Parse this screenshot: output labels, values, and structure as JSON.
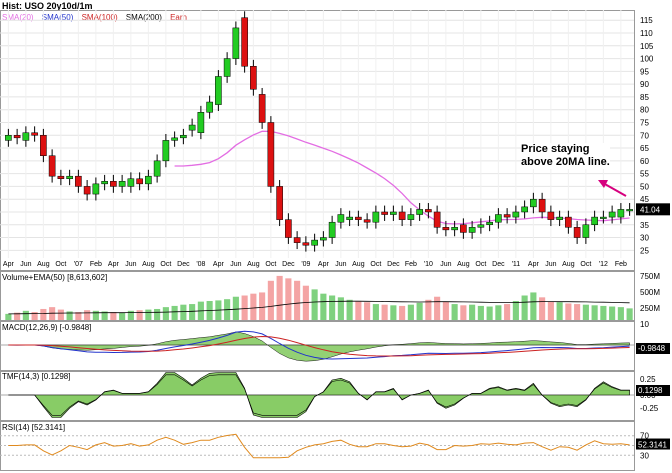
{
  "header": {
    "title": "Hist: USO 20y10d/1m"
  },
  "legend": [
    {
      "label": "SMA(20)",
      "color": "#e36de3"
    },
    {
      "label": "SMA(50)",
      "color": "#2233cc"
    },
    {
      "label": "SMA(100)",
      "color": "#cc2222"
    },
    {
      "label": "SMA(200)",
      "color": "#000000"
    },
    {
      "label": "Earn",
      "color": "#cc2222"
    }
  ],
  "annotation": {
    "line1": "Price staying",
    "line2": "above 20MA line."
  },
  "panels": {
    "volume": {
      "label": "Volume+EMA(50) [8,613,602]"
    },
    "macd": {
      "label": "MACD(12,26,9) [-0.9848]",
      "value": "-0.9848"
    },
    "tmf": {
      "label": "TMF(14,3) [0.1298]",
      "value": "0.1298"
    },
    "rsi": {
      "label": "RSI(14) [52.3141]",
      "value": "52.3141"
    }
  },
  "chart_data": {
    "type": "candlestick",
    "title": "Hist: USO 20y10d/1m",
    "period": "monthly",
    "last_price": "41.04",
    "y_ticks": [
      25,
      30,
      35,
      40,
      45,
      50,
      55,
      60,
      65,
      70,
      75,
      80,
      85,
      90,
      95,
      100,
      105,
      110,
      115
    ],
    "ylim": [
      22,
      119
    ],
    "x_ticks": [
      "Apr",
      "Jun",
      "Aug",
      "Oct",
      "'07",
      "Feb",
      "Apr",
      "Jun",
      "Aug",
      "Oct",
      "Dec",
      "'08",
      "Apr",
      "Jun",
      "Aug",
      "Oct",
      "Dec",
      "'09",
      "Apr",
      "Jun",
      "Aug",
      "Oct",
      "Dec",
      "Feb",
      "'10",
      "Jun",
      "Aug",
      "Oct",
      "Dec",
      "'11",
      "Apr",
      "Jun",
      "Aug",
      "Oct",
      "'12",
      "Feb"
    ],
    "candles": [
      {
        "date": "2006-04",
        "open": 68,
        "close": 70
      },
      {
        "date": "2006-05",
        "open": 70,
        "close": 69
      },
      {
        "date": "2006-06",
        "open": 68,
        "close": 71
      },
      {
        "date": "2006-07",
        "open": 71,
        "close": 70
      },
      {
        "date": "2006-08",
        "open": 70,
        "close": 62
      },
      {
        "date": "2006-09",
        "open": 62,
        "close": 54
      },
      {
        "date": "2006-10",
        "open": 54,
        "close": 53
      },
      {
        "date": "2006-11",
        "open": 53,
        "close": 54
      },
      {
        "date": "2006-12",
        "open": 54,
        "close": 50
      },
      {
        "date": "2007-01",
        "open": 50,
        "close": 47
      },
      {
        "date": "2007-02",
        "open": 47,
        "close": 51
      },
      {
        "date": "2007-03",
        "open": 51,
        "close": 52
      },
      {
        "date": "2007-04",
        "open": 52,
        "close": 50
      },
      {
        "date": "2007-05",
        "open": 50,
        "close": 52
      },
      {
        "date": "2007-06",
        "open": 50,
        "close": 53
      },
      {
        "date": "2007-07",
        "open": 53,
        "close": 51
      },
      {
        "date": "2007-08",
        "open": 51,
        "close": 54
      },
      {
        "date": "2007-09",
        "open": 54,
        "close": 60
      },
      {
        "date": "2007-10",
        "open": 60,
        "close": 68
      },
      {
        "date": "2007-11",
        "open": 68,
        "close": 69
      },
      {
        "date": "2007-12",
        "open": 69,
        "close": 70
      },
      {
        "date": "2008-01",
        "open": 72,
        "close": 74
      },
      {
        "date": "2008-02",
        "open": 71,
        "close": 79
      },
      {
        "date": "2008-03",
        "open": 79,
        "close": 83
      },
      {
        "date": "2008-04",
        "open": 82,
        "close": 93
      },
      {
        "date": "2008-05",
        "open": 93,
        "close": 100
      },
      {
        "date": "2008-06",
        "open": 100,
        "close": 112
      },
      {
        "date": "2008-07",
        "open": 116,
        "close": 97
      },
      {
        "date": "2008-08",
        "open": 97,
        "close": 88
      },
      {
        "date": "2008-09",
        "open": 86,
        "close": 75
      },
      {
        "date": "2008-10",
        "open": 75,
        "close": 50
      },
      {
        "date": "2008-11",
        "open": 50,
        "close": 37
      },
      {
        "date": "2008-12",
        "open": 37,
        "close": 30
      },
      {
        "date": "2009-01",
        "open": 30,
        "close": 28
      },
      {
        "date": "2009-02",
        "open": 28,
        "close": 27
      },
      {
        "date": "2009-03",
        "open": 27,
        "close": 29
      },
      {
        "date": "2009-04",
        "open": 29,
        "close": 30
      },
      {
        "date": "2009-05",
        "open": 30,
        "close": 36
      },
      {
        "date": "2009-06",
        "open": 36,
        "close": 39
      },
      {
        "date": "2009-07",
        "open": 37,
        "close": 38
      },
      {
        "date": "2009-08",
        "open": 38,
        "close": 37
      },
      {
        "date": "2009-09",
        "open": 37,
        "close": 36
      },
      {
        "date": "2009-10",
        "open": 36,
        "close": 40
      },
      {
        "date": "2009-11",
        "open": 40,
        "close": 39
      },
      {
        "date": "2009-12",
        "open": 39,
        "close": 40
      },
      {
        "date": "2010-01",
        "open": 40,
        "close": 37
      },
      {
        "date": "2010-02",
        "open": 37,
        "close": 39
      },
      {
        "date": "2010-03",
        "open": 39,
        "close": 41
      },
      {
        "date": "2010-04",
        "open": 41,
        "close": 40
      },
      {
        "date": "2010-05",
        "open": 40,
        "close": 34
      },
      {
        "date": "2010-06",
        "open": 34,
        "close": 33
      },
      {
        "date": "2010-07",
        "open": 33,
        "close": 34
      },
      {
        "date": "2010-08",
        "open": 35,
        "close": 32
      },
      {
        "date": "2010-09",
        "open": 32,
        "close": 34
      },
      {
        "date": "2010-10",
        "open": 34,
        "close": 35
      },
      {
        "date": "2010-11",
        "open": 35,
        "close": 36
      },
      {
        "date": "2010-12",
        "open": 36,
        "close": 39
      },
      {
        "date": "2011-01",
        "open": 39,
        "close": 38
      },
      {
        "date": "2011-02",
        "open": 38,
        "close": 40
      },
      {
        "date": "2011-03",
        "open": 40,
        "close": 42
      },
      {
        "date": "2011-04",
        "open": 42,
        "close": 45
      },
      {
        "date": "2011-05",
        "open": 45,
        "close": 40
      },
      {
        "date": "2011-06",
        "open": 40,
        "close": 37
      },
      {
        "date": "2011-07",
        "open": 37,
        "close": 38
      },
      {
        "date": "2011-08",
        "open": 38,
        "close": 34
      },
      {
        "date": "2011-09",
        "open": 34,
        "close": 30
      },
      {
        "date": "2011-10",
        "open": 30,
        "close": 35
      },
      {
        "date": "2011-11",
        "open": 35,
        "close": 38
      },
      {
        "date": "2011-12",
        "open": 38,
        "close": 38
      },
      {
        "date": "2012-01",
        "open": 38,
        "close": 40
      },
      {
        "date": "2012-02",
        "open": 38,
        "close": 41
      },
      {
        "date": "2012-03",
        "open": 41,
        "close": 41
      }
    ],
    "volume": [
      100,
      120,
      150,
      130,
      180,
      210,
      170,
      140,
      130,
      160,
      150,
      140,
      130,
      120,
      150,
      160,
      170,
      180,
      210,
      230,
      250,
      260,
      300,
      310,
      320,
      340,
      380,
      400,
      430,
      450,
      640,
      720,
      680,
      640,
      560,
      500,
      430,
      400,
      370,
      330,
      300,
      290,
      260,
      250,
      240,
      230,
      250,
      280,
      330,
      380,
      300,
      260,
      240,
      250,
      230,
      220,
      240,
      260,
      310,
      400,
      450,
      370,
      300,
      290,
      270,
      260,
      250,
      240,
      230,
      220,
      210,
      190
    ],
    "volume_axis": [
      "750M",
      "500M",
      "250M"
    ],
    "macd_axis": [
      "10",
      "0"
    ],
    "tmf_axis": [
      "0.25",
      "0.00",
      "-0.25"
    ],
    "rsi_axis": [
      "70",
      "50",
      "30"
    ]
  }
}
